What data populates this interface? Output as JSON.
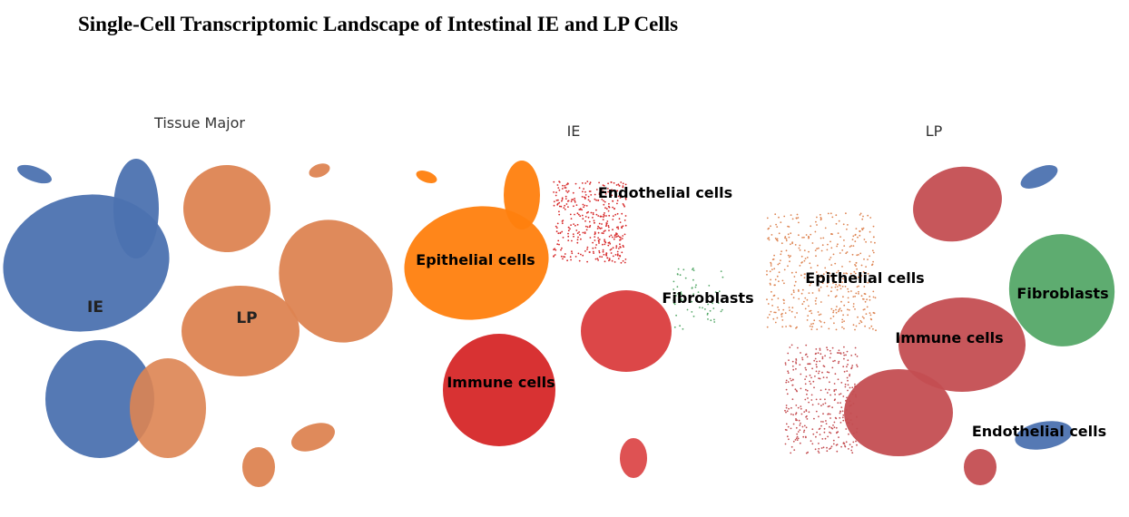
{
  "figure": {
    "title": "Single-Cell Transcriptomic Landscape of Intestinal IE and LP Cells"
  },
  "colors": {
    "ie_blue": "#4c72b0",
    "lp_orange": "#dd8452",
    "epithelial": "#ff7f0e",
    "immune": "#d62728",
    "fibro": "#55a868",
    "lp_immune": "#c44e52",
    "endo_lp": "#4c72b0"
  },
  "chart_data": [
    {
      "type": "scatter",
      "title": "Tissue Major",
      "xlabel": "",
      "ylabel": "",
      "grid": false,
      "axes": "off",
      "series": [
        {
          "name": "IE",
          "color": "#4c72b0"
        },
        {
          "name": "LP",
          "color": "#dd8452"
        }
      ],
      "annotations": [
        "IE",
        "LP"
      ]
    },
    {
      "type": "scatter",
      "title": "IE",
      "xlabel": "",
      "ylabel": "",
      "grid": false,
      "axes": "off",
      "series": [
        {
          "name": "Epithelial cells",
          "color": "#ff7f0e"
        },
        {
          "name": "Immune cells",
          "color": "#d62728"
        },
        {
          "name": "Endothelial cells",
          "color": "#d62728"
        },
        {
          "name": "Fibroblasts",
          "color": "#55a868"
        }
      ],
      "annotations": [
        "Epithelial cells",
        "Immune cells",
        "Endothelial cells",
        "Fibroblasts"
      ]
    },
    {
      "type": "scatter",
      "title": "LP",
      "xlabel": "",
      "ylabel": "",
      "grid": false,
      "axes": "off",
      "series": [
        {
          "name": "Epithelial cells",
          "color": "#dd8452"
        },
        {
          "name": "Immune cells",
          "color": "#c44e52"
        },
        {
          "name": "Fibroblasts",
          "color": "#55a868"
        },
        {
          "name": "Endothelial cells",
          "color": "#4c72b0"
        }
      ],
      "annotations": [
        "Epithelial cells",
        "Immune cells",
        "Fibroblasts",
        "Endothelial cells"
      ]
    }
  ]
}
